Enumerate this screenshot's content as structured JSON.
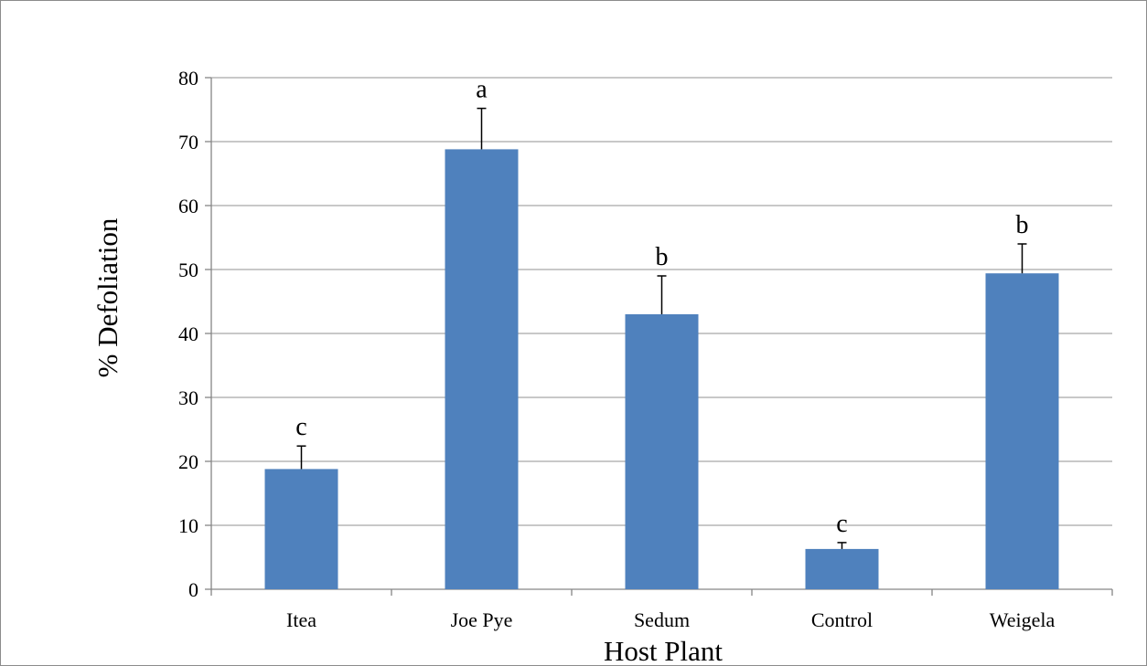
{
  "chart_data": {
    "type": "bar",
    "title": "",
    "xlabel": "Host Plant",
    "ylabel": "% Defoliation",
    "categories": [
      "Itea",
      "Joe Pye",
      "Sedum",
      "Control",
      "Weigela"
    ],
    "values": [
      18.8,
      68.8,
      43.0,
      6.3,
      49.4
    ],
    "error_plus": [
      3.6,
      6.4,
      6.0,
      1.0,
      4.6
    ],
    "significance_letters": [
      "c",
      "a",
      "b",
      "c",
      "b"
    ],
    "ylim": [
      0,
      80
    ],
    "yticks": [
      0,
      10,
      20,
      30,
      40,
      50,
      60,
      70,
      80
    ],
    "grid": true,
    "legend": "none",
    "bar_color": "#4f81bd",
    "grid_color": "#a6a6a6",
    "axis_color": "#868686"
  }
}
